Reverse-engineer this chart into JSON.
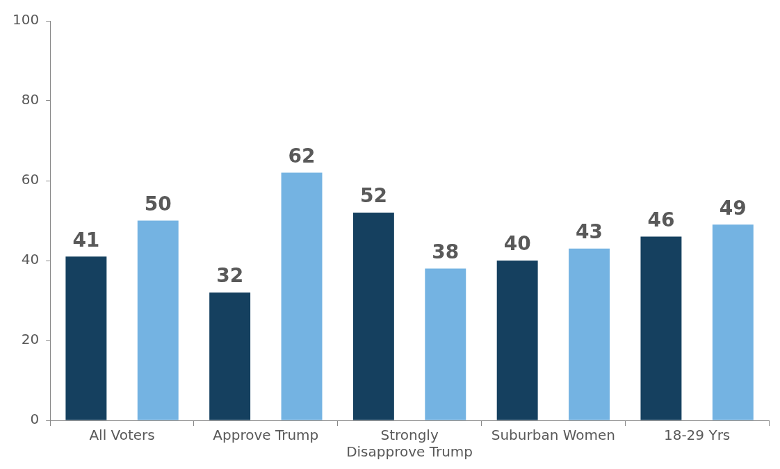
{
  "chart_data": {
    "type": "bar",
    "categories": [
      "All Voters",
      "Approve Trump",
      "Strongly Disapprove Trump",
      "Suburban Women",
      "18-29 Yrs"
    ],
    "series": [
      {
        "color": "#15405f",
        "values": [
          41,
          32,
          52,
          40,
          46
        ]
      },
      {
        "color": "#74b3e2",
        "values": [
          50,
          62,
          38,
          43,
          49
        ]
      }
    ],
    "ylim": [
      0,
      100
    ],
    "yticks": [
      0,
      20,
      40,
      60,
      80,
      100
    ],
    "data_labels": true,
    "legend": false,
    "grid": false
  }
}
